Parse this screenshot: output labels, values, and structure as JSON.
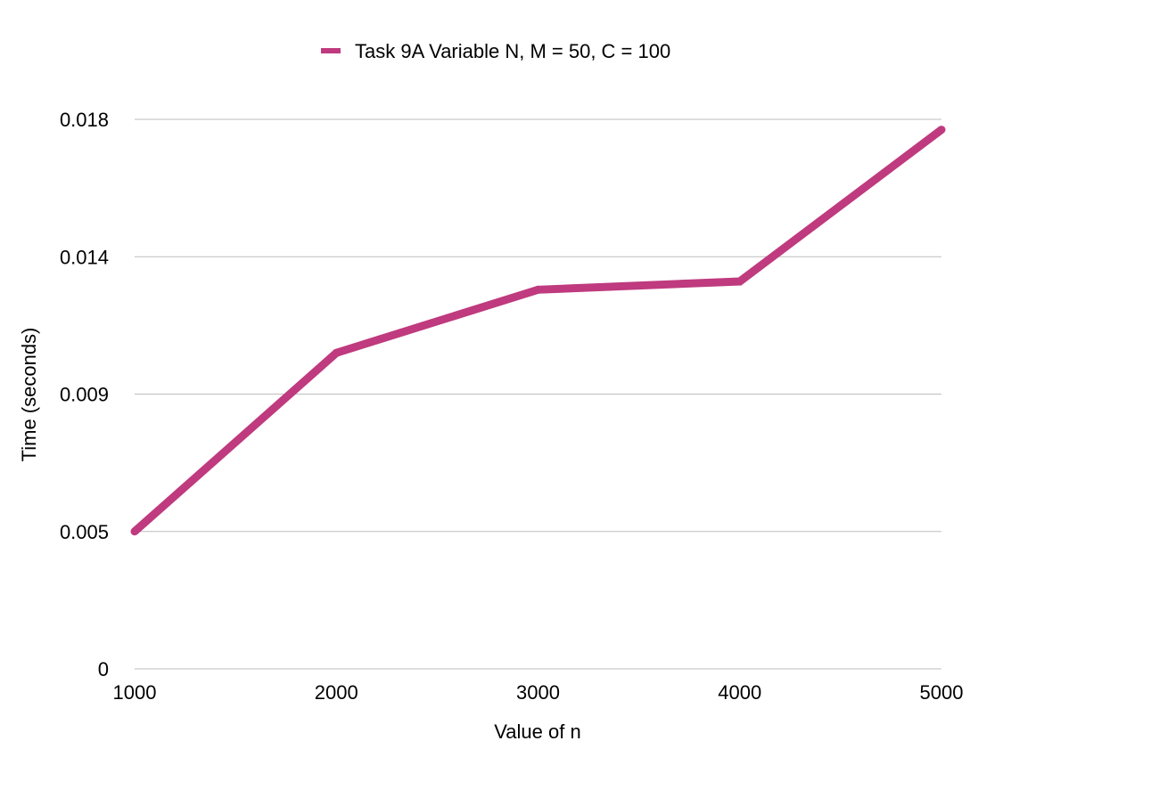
{
  "chart_data": {
    "type": "line",
    "x": [
      1000,
      2000,
      3000,
      4000,
      5000
    ],
    "x_tick_labels": [
      "1000",
      "2000",
      "3000",
      "4000",
      "5000"
    ],
    "series": [
      {
        "name": "Task 9A Variable N, M = 50, C = 100",
        "values": [
          0.005,
          0.0105,
          0.0128,
          0.0131,
          0.0177
        ],
        "color": "#bf3a7e"
      }
    ],
    "y_ticks": [
      0,
      0.005,
      0.009,
      0.014,
      0.018
    ],
    "y_tick_labels": [
      "0",
      "0.005",
      "0.009",
      "0.014",
      "0.018"
    ],
    "xlabel": "Value of n",
    "ylabel": "Time (seconds)",
    "xlim": [
      1000,
      5000
    ],
    "ylim": [
      0,
      0.018
    ],
    "grid": "horizontal",
    "legend_position": "top"
  }
}
